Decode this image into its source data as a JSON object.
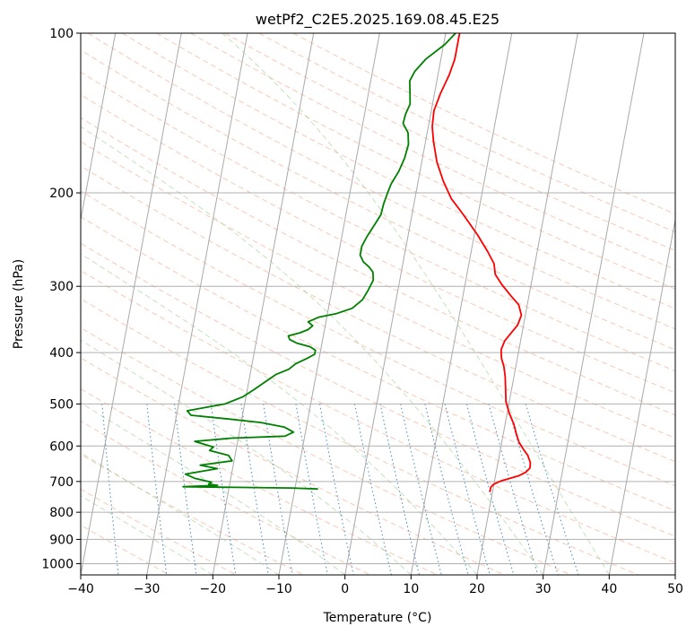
{
  "chart_data": {
    "type": "line",
    "title": "wetPf2_C2E5.2025.169.08.45.E25",
    "xlabel": "Temperature (°C)",
    "ylabel": "Pressure (hPa)",
    "xlim": [
      -40,
      50
    ],
    "ylim": [
      1050,
      100
    ],
    "y_scale": "log",
    "grid": true,
    "x_ticks": [
      -40,
      -30,
      -20,
      -10,
      0,
      10,
      20,
      30,
      40,
      50
    ],
    "y_ticks": [
      100,
      200,
      300,
      400,
      500,
      600,
      700,
      800,
      900,
      1000
    ],
    "series": [
      {
        "name": "",
        "color": "#ff0000",
        "points": [
          [
            2.1,
            100
          ],
          [
            2.1,
            112
          ],
          [
            1.7,
            120
          ],
          [
            0.9,
            130
          ],
          [
            0.4,
            140
          ],
          [
            0.6,
            150
          ],
          [
            1.2,
            160
          ],
          [
            2.3,
            175
          ],
          [
            3.8,
            190
          ],
          [
            5.5,
            205
          ],
          [
            7.8,
            220
          ],
          [
            10.5,
            240
          ],
          [
            12.5,
            258
          ],
          [
            13.8,
            272
          ],
          [
            14.3,
            285
          ],
          [
            15.6,
            298
          ],
          [
            17.2,
            312
          ],
          [
            18.7,
            325
          ],
          [
            19.4,
            340
          ],
          [
            19.1,
            355
          ],
          [
            18.3,
            368
          ],
          [
            17.6,
            380
          ],
          [
            17.3,
            395
          ],
          [
            17.6,
            410
          ],
          [
            18.2,
            425
          ],
          [
            18.7,
            445
          ],
          [
            19.1,
            470
          ],
          [
            19.5,
            495
          ],
          [
            20.3,
            520
          ],
          [
            21.3,
            545
          ],
          [
            22.0,
            570
          ],
          [
            22.6,
            590
          ],
          [
            23.3,
            605
          ],
          [
            24.3,
            625
          ],
          [
            24.9,
            645
          ],
          [
            25.0,
            660
          ],
          [
            24.5,
            672
          ],
          [
            23.6,
            682
          ],
          [
            22.3,
            690
          ],
          [
            21.0,
            698
          ],
          [
            20.0,
            708
          ],
          [
            19.6,
            718
          ],
          [
            19.6,
            733
          ]
        ]
      },
      {
        "name": "",
        "color": "#008000",
        "points": [
          [
            1.5,
            100
          ],
          [
            0.2,
            105
          ],
          [
            -2.3,
            112
          ],
          [
            -3.6,
            118
          ],
          [
            -4.1,
            123
          ],
          [
            -3.7,
            130
          ],
          [
            -3.4,
            136
          ],
          [
            -3.8,
            142
          ],
          [
            -3.9,
            148
          ],
          [
            -2.9,
            154
          ],
          [
            -2.5,
            162
          ],
          [
            -2.7,
            172
          ],
          [
            -3.2,
            182
          ],
          [
            -4.0,
            192
          ],
          [
            -4.3,
            200
          ],
          [
            -4.6,
            210
          ],
          [
            -4.7,
            220
          ],
          [
            -5.4,
            230
          ],
          [
            -6.2,
            242
          ],
          [
            -6.7,
            252
          ],
          [
            -6.7,
            262
          ],
          [
            -6.0,
            270
          ],
          [
            -5.0,
            276
          ],
          [
            -4.3,
            282
          ],
          [
            -4.0,
            292
          ],
          [
            -4.5,
            305
          ],
          [
            -5.1,
            318
          ],
          [
            -6.4,
            330
          ],
          [
            -8.7,
            338
          ],
          [
            -11.2,
            343
          ],
          [
            -12.7,
            350
          ],
          [
            -11.9,
            356
          ],
          [
            -12.5,
            362
          ],
          [
            -13.6,
            367
          ],
          [
            -15.3,
            372
          ],
          [
            -15.0,
            378
          ],
          [
            -13.8,
            384
          ],
          [
            -11.7,
            390
          ],
          [
            -10.8,
            396
          ],
          [
            -10.8,
            403
          ],
          [
            -11.8,
            410
          ],
          [
            -13.4,
            420
          ],
          [
            -14.3,
            430
          ],
          [
            -16.1,
            440
          ],
          [
            -17.6,
            455
          ],
          [
            -19.0,
            470
          ],
          [
            -20.5,
            485
          ],
          [
            -23.0,
            500
          ],
          [
            -28.5,
            515
          ],
          [
            -27.8,
            525
          ],
          [
            -22.5,
            533
          ],
          [
            -17.0,
            542
          ],
          [
            -13.3,
            553
          ],
          [
            -11.8,
            565
          ],
          [
            -13.0,
            575
          ],
          [
            -21.0,
            580
          ],
          [
            -26.5,
            588
          ],
          [
            -23.5,
            603
          ],
          [
            -24.0,
            612
          ],
          [
            -21.0,
            625
          ],
          [
            -20.3,
            640
          ],
          [
            -25.0,
            652
          ],
          [
            -22.3,
            662
          ],
          [
            -27.0,
            678
          ],
          [
            -25.5,
            690
          ],
          [
            -22.8,
            702
          ],
          [
            -23.2,
            708
          ],
          [
            -21.8,
            712
          ],
          [
            -27.0,
            716
          ],
          [
            -10.5,
            720
          ],
          [
            -6.5,
            723
          ]
        ]
      }
    ]
  }
}
